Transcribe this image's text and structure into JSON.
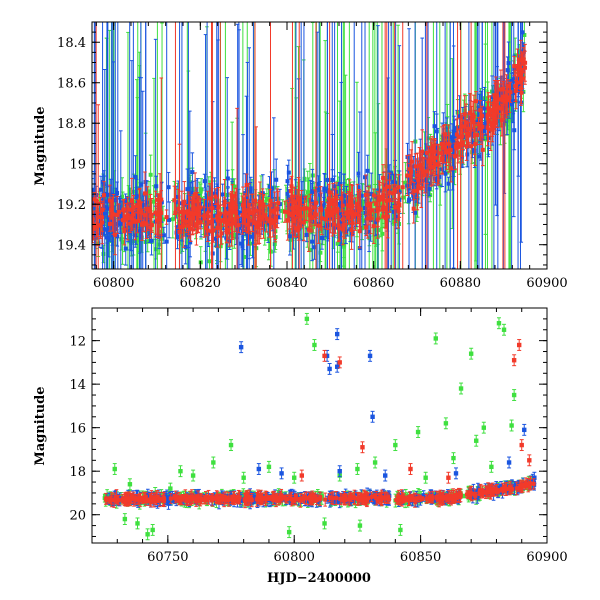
{
  "colors": {
    "green": "#3fe03f",
    "blue": "#1a55e0",
    "red": "#f23a2a",
    "axes": "#000000"
  },
  "chart_data": [
    {
      "type": "scatter",
      "panel": "top",
      "title": "",
      "xlabel": "",
      "ylabel": "Magnitude",
      "xlim": [
        60795,
        60900
      ],
      "ylim": [
        19.52,
        18.3
      ],
      "y_inverted": true,
      "x_ticks": [
        60800,
        60820,
        60840,
        60860,
        60880,
        60900
      ],
      "x_tick_labels": [
        "60800",
        "60820",
        "60840",
        "60860",
        "60880",
        "60900"
      ],
      "y_ticks": [
        18.4,
        18.6,
        18.8,
        19.0,
        19.2,
        19.4
      ],
      "y_tick_labels": [
        "18.4",
        "18.6",
        "18.8",
        "19",
        "19.2",
        "19.4"
      ],
      "series": [
        {
          "color_key": "green",
          "error_bars": true,
          "x_range": [
            60795,
            60895
          ],
          "y_range": [
            18.3,
            19.52
          ]
        },
        {
          "color_key": "blue",
          "error_bars": true,
          "x_range": [
            60795,
            60895
          ],
          "y_range": [
            18.3,
            19.52
          ]
        },
        {
          "color_key": "red",
          "error_bars": true,
          "x_range": [
            60795,
            60895
          ],
          "y_range": [
            18.3,
            19.52
          ]
        }
      ]
    },
    {
      "type": "scatter",
      "panel": "bottom",
      "title": "",
      "xlabel": "HJD−2400000",
      "ylabel": "Magnitude",
      "xlim": [
        60720,
        60900
      ],
      "ylim": [
        21.3,
        10.5
      ],
      "y_inverted": true,
      "x_ticks": [
        60750,
        60800,
        60850,
        60900
      ],
      "x_tick_labels": [
        "60750",
        "60800",
        "60850",
        "60900"
      ],
      "y_ticks": [
        12,
        14,
        16,
        18,
        20
      ],
      "y_tick_labels": [
        "12",
        "14",
        "16",
        "18",
        "20"
      ],
      "series": [
        {
          "color_key": "green",
          "error_bars": true,
          "x_range": [
            60725,
            60895
          ],
          "outliers": [
            [
              60729,
              17.9
            ],
            [
              60735,
              18.6
            ],
            [
              60745,
              19.0
            ],
            [
              60751,
              18.8
            ],
            [
              60755,
              18.0
            ],
            [
              60760,
              18.2
            ],
            [
              60768,
              17.6
            ],
            [
              60775,
              16.8
            ],
            [
              60780,
              18.3
            ],
            [
              60790,
              17.8
            ],
            [
              60800,
              18.3
            ],
            [
              60805,
              11.0
            ],
            [
              60808,
              12.2
            ],
            [
              60818,
              18.2
            ],
            [
              60825,
              17.9
            ],
            [
              60832,
              17.6
            ],
            [
              60840,
              16.8
            ],
            [
              60849,
              16.2
            ],
            [
              60852,
              18.3
            ],
            [
              60856,
              11.9
            ],
            [
              60860,
              15.8
            ],
            [
              60863,
              17.4
            ],
            [
              60866,
              14.2
            ],
            [
              60870,
              12.6
            ],
            [
              60872,
              16.6
            ],
            [
              60875,
              16.0
            ],
            [
              60878,
              17.8
            ],
            [
              60881,
              11.2
            ],
            [
              60883,
              11.5
            ],
            [
              60886,
              15.9
            ],
            [
              60887,
              14.5
            ],
            [
              60733,
              20.2
            ],
            [
              60738,
              20.4
            ],
            [
              60742,
              20.9
            ],
            [
              60744,
              20.7
            ],
            [
              60798,
              20.8
            ],
            [
              60812,
              20.4
            ],
            [
              60826,
              20.5
            ],
            [
              60842,
              20.7
            ]
          ]
        },
        {
          "color_key": "blue",
          "error_bars": true,
          "x_range": [
            60725,
            60895
          ],
          "outliers": [
            [
              60779,
              12.3
            ],
            [
              60813,
              12.7
            ],
            [
              60814,
              13.3
            ],
            [
              60817,
              11.7
            ],
            [
              60817,
              13.2
            ],
            [
              60830,
              12.7
            ],
            [
              60831,
              15.5
            ],
            [
              60786,
              17.9
            ],
            [
              60795,
              18.1
            ],
            [
              60818,
              18.0
            ],
            [
              60836,
              18.2
            ],
            [
              60864,
              18.1
            ],
            [
              60885,
              17.6
            ],
            [
              60891,
              16.1
            ],
            [
              60895,
              18.3
            ]
          ]
        },
        {
          "color_key": "red",
          "error_bars": true,
          "x_range": [
            60725,
            60895
          ],
          "outliers": [
            [
              60812,
              12.7
            ],
            [
              60818,
              13.0
            ],
            [
              60827,
              16.9
            ],
            [
              60846,
              17.9
            ],
            [
              60889,
              12.2
            ],
            [
              60887,
              12.9
            ],
            [
              60890,
              16.8
            ],
            [
              60893,
              17.5
            ],
            [
              60803,
              18.2
            ],
            [
              60861,
              18.3
            ]
          ]
        }
      ]
    }
  ]
}
